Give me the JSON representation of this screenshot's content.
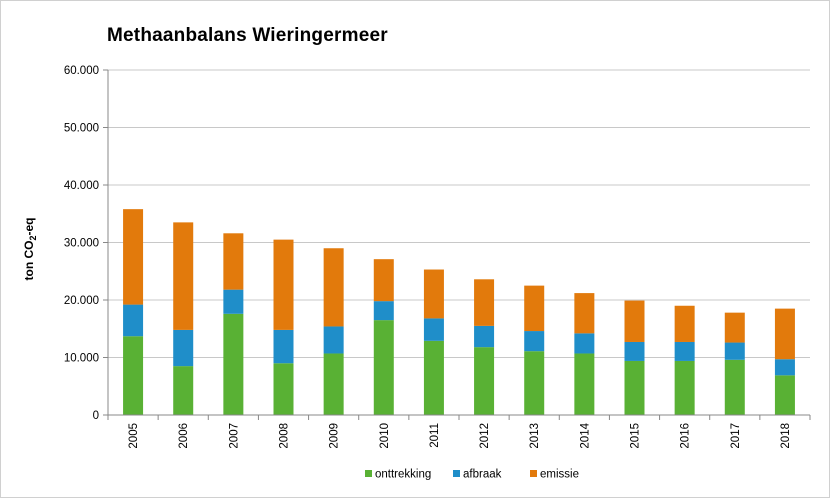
{
  "chart_data": {
    "type": "bar",
    "stacked": true,
    "title": "Methaanbalans Wieringermeer",
    "ylabel_main": "ton CO",
    "ylabel_sub": "2",
    "ylabel_tail": "-eq",
    "ylim": [
      0,
      60000
    ],
    "yticks": [
      0,
      10000,
      20000,
      30000,
      40000,
      50000,
      60000
    ],
    "ytick_labels": [
      "0",
      "10.000",
      "20.000",
      "30.000",
      "40.000",
      "50.000",
      "60.000"
    ],
    "grid": true,
    "legend_position": "bottom",
    "categories": [
      "2005",
      "2006",
      "2007",
      "2008",
      "2009",
      "2010",
      "2011",
      "2012",
      "2013",
      "2014",
      "2015",
      "2016",
      "2017",
      "2018"
    ],
    "series": [
      {
        "name": "onttrekking",
        "color": "#59b134",
        "values": [
          13700,
          8500,
          17600,
          9000,
          10700,
          16500,
          12900,
          11800,
          11100,
          10700,
          9400,
          9400,
          9600,
          6900
        ]
      },
      {
        "name": "afbraak",
        "color": "#1f8ec9",
        "values": [
          5500,
          6300,
          4200,
          5800,
          4700,
          3300,
          3900,
          3700,
          3500,
          3500,
          3300,
          3300,
          3000,
          2800
        ]
      },
      {
        "name": "emissie",
        "color": "#e27a0c",
        "values": [
          16600,
          18700,
          9800,
          15700,
          13600,
          7300,
          8500,
          8100,
          7900,
          7000,
          7200,
          6300,
          5200,
          8800
        ]
      }
    ]
  }
}
